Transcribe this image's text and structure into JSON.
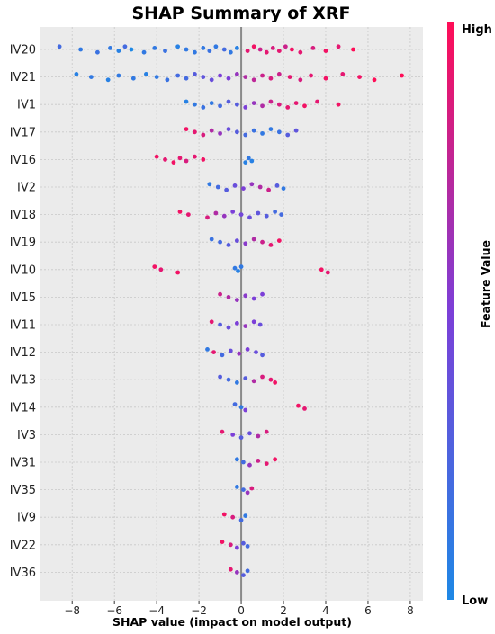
{
  "chart_data": {
    "type": "scatter",
    "title": "SHAP Summary of XRF",
    "xlabel": "SHAP value (impact on model output)",
    "xlim": [
      -9.5,
      8.6
    ],
    "xticks": [
      -8,
      -6,
      -4,
      -2,
      0,
      2,
      4,
      6,
      8
    ],
    "xtick_labels": [
      "−8",
      "−6",
      "−4",
      "−2",
      "0",
      "2",
      "4",
      "6",
      "8"
    ],
    "grid": true,
    "colorbar": {
      "label": "Feature Value",
      "high_label": "High",
      "low_label": "Low",
      "low_color": "#1e88e5",
      "high_color": "#ff0d57"
    },
    "features": [
      {
        "name": "IV20",
        "points": [
          [
            -8.6,
            0.2
          ],
          [
            -7.6,
            0.1
          ],
          [
            -6.8,
            0.15
          ],
          [
            -6.2,
            0.1
          ],
          [
            -5.8,
            0.05
          ],
          [
            -5.5,
            0.2
          ],
          [
            -5.2,
            0.0
          ],
          [
            -4.6,
            0.1
          ],
          [
            -4.1,
            0.1
          ],
          [
            -3.6,
            0.15
          ],
          [
            -3.0,
            0.05
          ],
          [
            -2.6,
            0.1
          ],
          [
            -2.2,
            0.1
          ],
          [
            -1.8,
            0.1
          ],
          [
            -1.5,
            0.15
          ],
          [
            -1.2,
            0.1
          ],
          [
            -0.8,
            0.2
          ],
          [
            -0.5,
            0.1
          ],
          [
            -0.2,
            0.05
          ],
          [
            0.3,
            0.9
          ],
          [
            0.6,
            0.95
          ],
          [
            0.9,
            0.8
          ],
          [
            1.2,
            0.9
          ],
          [
            1.5,
            0.85
          ],
          [
            1.8,
            0.9
          ],
          [
            2.1,
            0.8
          ],
          [
            2.4,
            0.95
          ],
          [
            2.8,
            0.9
          ],
          [
            3.4,
            0.85
          ],
          [
            4.0,
            0.95
          ],
          [
            4.6,
            0.9
          ],
          [
            5.3,
            1.0
          ]
        ]
      },
      {
        "name": "IV21",
        "points": [
          [
            -7.8,
            0.05
          ],
          [
            -7.1,
            0.1
          ],
          [
            -6.3,
            0.05
          ],
          [
            -5.8,
            0.1
          ],
          [
            -5.1,
            0.1
          ],
          [
            -4.5,
            0.05
          ],
          [
            -4.0,
            0.1
          ],
          [
            -3.5,
            0.15
          ],
          [
            -3.0,
            0.2
          ],
          [
            -2.6,
            0.2
          ],
          [
            -2.2,
            0.3
          ],
          [
            -1.8,
            0.35
          ],
          [
            -1.4,
            0.4
          ],
          [
            -1.0,
            0.5
          ],
          [
            -0.6,
            0.5
          ],
          [
            -0.2,
            0.6
          ],
          [
            0.2,
            0.7
          ],
          [
            0.6,
            0.75
          ],
          [
            1.0,
            0.8
          ],
          [
            1.4,
            0.85
          ],
          [
            1.8,
            0.8
          ],
          [
            2.3,
            0.9
          ],
          [
            2.8,
            0.85
          ],
          [
            3.3,
            0.9
          ],
          [
            4.0,
            0.95
          ],
          [
            4.8,
            0.9
          ],
          [
            5.6,
            0.95
          ],
          [
            6.3,
            1.0
          ],
          [
            7.6,
            1.0
          ]
        ]
      },
      {
        "name": "IV1",
        "points": [
          [
            -2.6,
            0.05
          ],
          [
            -2.2,
            0.1
          ],
          [
            -1.8,
            0.15
          ],
          [
            -1.4,
            0.1
          ],
          [
            -1.0,
            0.2
          ],
          [
            -0.6,
            0.3
          ],
          [
            -0.2,
            0.3
          ],
          [
            0.2,
            0.5
          ],
          [
            0.6,
            0.6
          ],
          [
            1.0,
            0.7
          ],
          [
            1.4,
            0.8
          ],
          [
            1.8,
            0.85
          ],
          [
            2.2,
            0.9
          ],
          [
            2.6,
            0.9
          ],
          [
            3.0,
            0.95
          ],
          [
            3.6,
            0.9
          ],
          [
            4.6,
            0.95
          ]
        ]
      },
      {
        "name": "IV17",
        "points": [
          [
            -2.6,
            0.95
          ],
          [
            -2.2,
            0.9
          ],
          [
            -1.8,
            0.85
          ],
          [
            -1.4,
            0.7
          ],
          [
            -1.0,
            0.6
          ],
          [
            -0.6,
            0.4
          ],
          [
            -0.2,
            0.3
          ],
          [
            0.2,
            0.2
          ],
          [
            0.6,
            0.15
          ],
          [
            1.0,
            0.1
          ],
          [
            1.4,
            0.1
          ],
          [
            1.8,
            0.15
          ],
          [
            2.2,
            0.3
          ],
          [
            2.6,
            0.35
          ]
        ]
      },
      {
        "name": "IV16",
        "points": [
          [
            -4.0,
            0.95
          ],
          [
            -3.6,
            0.9
          ],
          [
            -3.2,
            0.95
          ],
          [
            -2.9,
            0.9
          ],
          [
            -2.6,
            0.85
          ],
          [
            -2.2,
            0.9
          ],
          [
            -1.8,
            0.95
          ],
          [
            0.2,
            0.05
          ],
          [
            0.35,
            0.1
          ],
          [
            0.5,
            0.05
          ]
        ]
      },
      {
        "name": "IV2",
        "points": [
          [
            -1.5,
            0.1
          ],
          [
            -1.1,
            0.2
          ],
          [
            -0.7,
            0.3
          ],
          [
            -0.3,
            0.4
          ],
          [
            0.1,
            0.5
          ],
          [
            0.5,
            0.6
          ],
          [
            0.9,
            0.7
          ],
          [
            1.3,
            0.8
          ],
          [
            1.7,
            0.3
          ],
          [
            2.0,
            0.1
          ]
        ]
      },
      {
        "name": "IV18",
        "points": [
          [
            -2.9,
            0.95
          ],
          [
            -2.5,
            0.9
          ],
          [
            -1.6,
            0.85
          ],
          [
            -1.2,
            0.7
          ],
          [
            -0.8,
            0.6
          ],
          [
            -0.4,
            0.5
          ],
          [
            0.0,
            0.45
          ],
          [
            0.4,
            0.4
          ],
          [
            0.8,
            0.35
          ],
          [
            1.2,
            0.3
          ],
          [
            1.6,
            0.2
          ],
          [
            1.9,
            0.2
          ]
        ]
      },
      {
        "name": "IV19",
        "points": [
          [
            -1.4,
            0.15
          ],
          [
            -1.0,
            0.2
          ],
          [
            -0.6,
            0.3
          ],
          [
            -0.2,
            0.4
          ],
          [
            0.2,
            0.55
          ],
          [
            0.6,
            0.7
          ],
          [
            1.0,
            0.8
          ],
          [
            1.4,
            0.9
          ],
          [
            1.8,
            0.95
          ]
        ]
      },
      {
        "name": "IV10",
        "points": [
          [
            -4.1,
            0.95
          ],
          [
            -3.8,
            0.9
          ],
          [
            -3.0,
            0.95
          ],
          [
            -0.3,
            0.1
          ],
          [
            -0.15,
            0.05
          ],
          [
            0.0,
            0.1
          ],
          [
            3.8,
            0.95
          ],
          [
            4.1,
            0.9
          ]
        ]
      },
      {
        "name": "IV15",
        "points": [
          [
            -1.0,
            0.8
          ],
          [
            -0.6,
            0.7
          ],
          [
            -0.2,
            0.6
          ],
          [
            0.2,
            0.55
          ],
          [
            0.6,
            0.5
          ],
          [
            1.0,
            0.5
          ]
        ]
      },
      {
        "name": "IV11",
        "points": [
          [
            -1.4,
            0.9
          ],
          [
            -1.0,
            0.3
          ],
          [
            -0.6,
            0.4
          ],
          [
            -0.2,
            0.5
          ],
          [
            0.2,
            0.6
          ],
          [
            0.6,
            0.5
          ],
          [
            0.9,
            0.4
          ]
        ]
      },
      {
        "name": "IV12",
        "points": [
          [
            -1.6,
            0.1
          ],
          [
            -1.3,
            0.9
          ],
          [
            -0.9,
            0.2
          ],
          [
            -0.5,
            0.4
          ],
          [
            -0.1,
            0.6
          ],
          [
            0.3,
            0.5
          ],
          [
            0.7,
            0.4
          ],
          [
            1.0,
            0.3
          ]
        ]
      },
      {
        "name": "IV13",
        "points": [
          [
            -1.0,
            0.3
          ],
          [
            -0.6,
            0.2
          ],
          [
            -0.2,
            0.1
          ],
          [
            0.2,
            0.3
          ],
          [
            0.6,
            0.7
          ],
          [
            1.0,
            0.85
          ],
          [
            1.4,
            0.9
          ],
          [
            1.6,
            0.95
          ]
        ]
      },
      {
        "name": "IV14",
        "points": [
          [
            -0.3,
            0.2
          ],
          [
            0.0,
            0.1
          ],
          [
            0.2,
            0.5
          ],
          [
            2.7,
            0.95
          ],
          [
            3.0,
            0.9
          ]
        ]
      },
      {
        "name": "IV3",
        "points": [
          [
            -0.9,
            0.9
          ],
          [
            -0.4,
            0.5
          ],
          [
            0.0,
            0.3
          ],
          [
            0.4,
            0.4
          ],
          [
            0.8,
            0.7
          ],
          [
            1.2,
            0.85
          ]
        ]
      },
      {
        "name": "IV31",
        "points": [
          [
            -0.2,
            0.1
          ],
          [
            0.1,
            0.2
          ],
          [
            0.4,
            0.6
          ],
          [
            0.8,
            0.8
          ],
          [
            1.2,
            0.9
          ],
          [
            1.6,
            0.95
          ]
        ]
      },
      {
        "name": "IV35",
        "points": [
          [
            -0.2,
            0.1
          ],
          [
            0.1,
            0.2
          ],
          [
            0.3,
            0.6
          ],
          [
            0.5,
            0.85
          ]
        ]
      },
      {
        "name": "IV9",
        "points": [
          [
            -0.8,
            0.95
          ],
          [
            -0.4,
            0.85
          ],
          [
            0.0,
            0.2
          ],
          [
            0.2,
            0.1
          ]
        ]
      },
      {
        "name": "IV22",
        "points": [
          [
            -0.9,
            0.95
          ],
          [
            -0.5,
            0.85
          ],
          [
            -0.2,
            0.5
          ],
          [
            0.1,
            0.3
          ],
          [
            0.3,
            0.2
          ]
        ]
      },
      {
        "name": "IV36",
        "points": [
          [
            -0.5,
            0.9
          ],
          [
            -0.2,
            0.6
          ],
          [
            0.1,
            0.3
          ],
          [
            0.3,
            0.2
          ]
        ]
      }
    ]
  }
}
